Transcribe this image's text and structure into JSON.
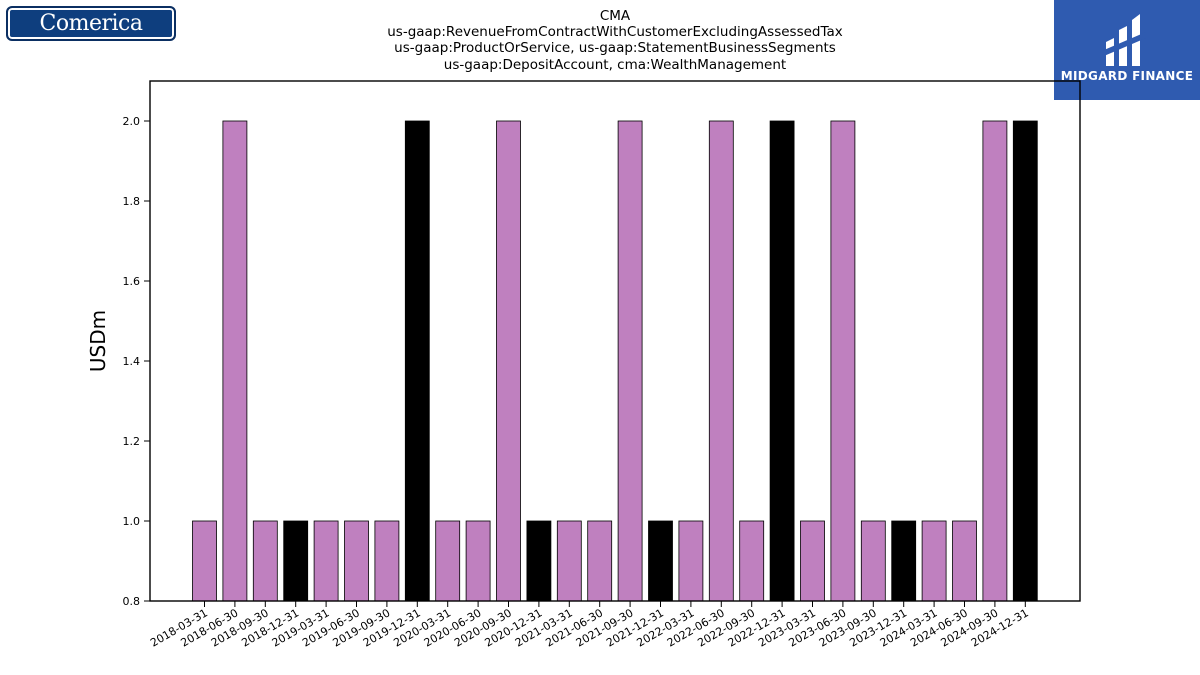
{
  "logos": {
    "left_text": "Comerica",
    "right_text": "MIDGARD FINANCE"
  },
  "chart_data": {
    "type": "bar",
    "title": [
      "CMA",
      "us-gaap:RevenueFromContractWithCustomerExcludingAssessedTax",
      "us-gaap:ProductOrService, us-gaap:StatementBusinessSegments",
      "us-gaap:DepositAccount, cma:WealthManagement"
    ],
    "xlabel": "",
    "ylabel": "USDm",
    "ylim": [
      0.8,
      2.1
    ],
    "yticks": [
      "0.8",
      "1.0",
      "1.2",
      "1.4",
      "1.6",
      "1.8",
      "2.0"
    ],
    "grid": false,
    "categories": [
      "2018-03-31",
      "2018-06-30",
      "2018-09-30",
      "2018-12-31",
      "2019-03-31",
      "2019-06-30",
      "2019-09-30",
      "2019-12-31",
      "2020-03-31",
      "2020-06-30",
      "2020-09-30",
      "2020-12-31",
      "2021-03-31",
      "2021-06-30",
      "2021-09-30",
      "2021-12-31",
      "2022-03-31",
      "2022-06-30",
      "2022-09-30",
      "2022-12-31",
      "2023-03-31",
      "2023-06-30",
      "2023-09-30",
      "2023-12-31",
      "2024-03-31",
      "2024-06-30",
      "2024-09-30",
      "2024-12-31"
    ],
    "values": [
      1,
      2,
      1,
      1,
      1,
      1,
      1,
      2,
      1,
      1,
      2,
      1,
      1,
      1,
      2,
      1,
      1,
      2,
      1,
      2,
      1,
      2,
      1,
      1,
      1,
      1,
      2,
      2
    ],
    "bar_colors": [
      "#bf80bf",
      "#bf80bf",
      "#bf80bf",
      "#000000",
      "#bf80bf",
      "#bf80bf",
      "#bf80bf",
      "#000000",
      "#bf80bf",
      "#bf80bf",
      "#bf80bf",
      "#000000",
      "#bf80bf",
      "#bf80bf",
      "#bf80bf",
      "#000000",
      "#bf80bf",
      "#bf80bf",
      "#bf80bf",
      "#000000",
      "#bf80bf",
      "#bf80bf",
      "#bf80bf",
      "#000000",
      "#bf80bf",
      "#bf80bf",
      "#bf80bf",
      "#000000"
    ],
    "colors": {
      "quarter": "#bf80bf",
      "year_end": "#000000"
    }
  }
}
